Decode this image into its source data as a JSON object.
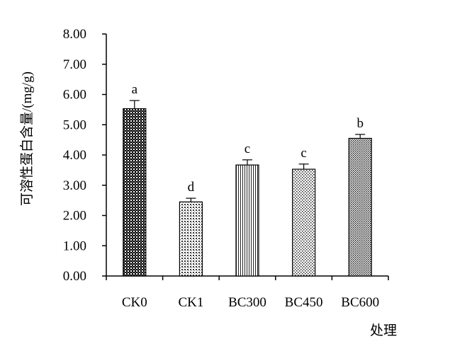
{
  "chart_data": {
    "type": "bar",
    "title": "",
    "xlabel": "处理",
    "ylabel": "可溶性蛋白含量/(mg/g)",
    "categories": [
      "CK0",
      "CK1",
      "BC300",
      "BC450",
      "BC600"
    ],
    "values": [
      5.53,
      2.45,
      3.67,
      3.53,
      4.55
    ],
    "errors": [
      0.27,
      0.12,
      0.17,
      0.17,
      0.13
    ],
    "significance": [
      "a",
      "d",
      "c",
      "c",
      "b"
    ],
    "ylim": [
      0,
      8
    ],
    "yticks": [
      "0.00",
      "1.00",
      "2.00",
      "3.00",
      "4.00",
      "5.00",
      "6.00",
      "7.00",
      "8.00"
    ],
    "grid": false,
    "legend": "none",
    "bar_patterns": [
      "dense-check",
      "dot-grid",
      "vertical-lines",
      "dots",
      "fine-check"
    ],
    "colors": {
      "axis": "#000000",
      "bar_fill": "#ffffff",
      "pattern_ink": "#000000"
    }
  }
}
